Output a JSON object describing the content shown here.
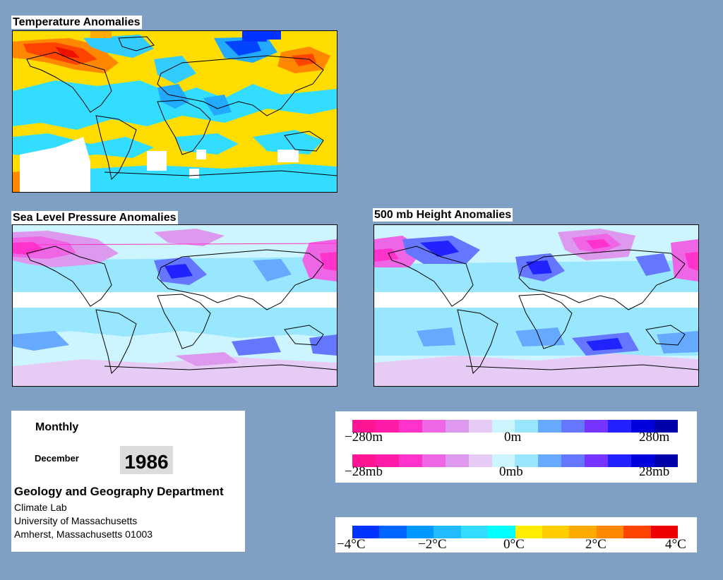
{
  "maps": {
    "temperature": {
      "title": "Temperature Anomalies"
    },
    "slp": {
      "title": "Sea Level Pressure Anomalies"
    },
    "height500": {
      "title": "500 mb Height Anomalies"
    }
  },
  "info": {
    "period": "Monthly",
    "month": "December",
    "year": "1986",
    "department": "Geology and Geography Department",
    "lab": "Climate Lab",
    "university": "University of Massachusetts",
    "address": "Amherst, Massachusetts 01003"
  },
  "legends": {
    "height": {
      "min": "−280m",
      "mid": "0m",
      "max": "280m"
    },
    "pressure": {
      "min": "−28mb",
      "mid": "0mb",
      "max": "28mb"
    },
    "temperature": {
      "t1": "−4°C",
      "t2": "−2°C",
      "t3": "0°C",
      "t4": "2°C",
      "t5": "4°C"
    }
  },
  "colors": {
    "background": "#7f9fc4",
    "pressure_scale": [
      "#ff1493",
      "#ff1aa8",
      "#ff33cc",
      "#ee66e6",
      "#dd99ee",
      "#e6ccf5",
      "#ccf5ff",
      "#99e6ff",
      "#66aaff",
      "#6677ff",
      "#7733ff",
      "#2222ff",
      "#0000dd",
      "#0000aa"
    ],
    "temperature_scale": [
      "#0033ff",
      "#0066ff",
      "#0099ff",
      "#22bbff",
      "#33ddff",
      "#00ffff",
      "#ffee00",
      "#ffcc00",
      "#ffaa00",
      "#ff8800",
      "#ff4400",
      "#ee0000"
    ]
  }
}
